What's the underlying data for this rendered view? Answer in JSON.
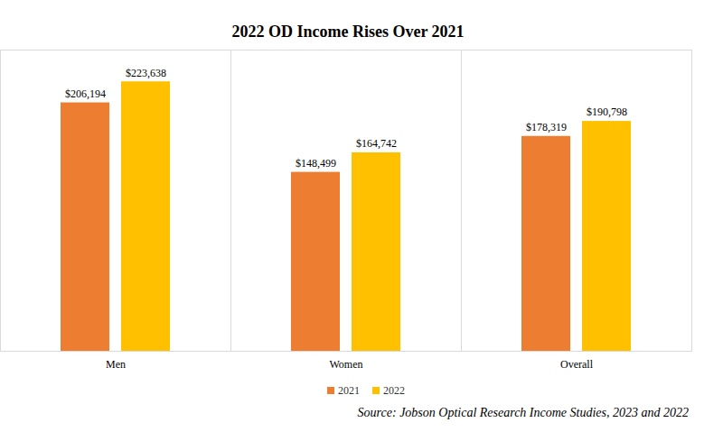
{
  "chart_data": {
    "type": "bar",
    "title": "2022 OD Income Rises Over 2021",
    "categories": [
      "Men",
      "Women",
      "Overall"
    ],
    "series": [
      {
        "name": "2021",
        "color": "#ed7d31",
        "values": [
          206194,
          148499,
          178319
        ],
        "value_labels": [
          "$206,194",
          "$148,499",
          "$178,319"
        ]
      },
      {
        "name": "2022",
        "color": "#ffc000",
        "values": [
          223638,
          164742,
          190798
        ],
        "value_labels": [
          "$223,638",
          "$164,742",
          "$190,798"
        ]
      }
    ],
    "ylim": [
      0,
      250000
    ],
    "data_labels": true,
    "tick_labels": "x",
    "legend": "bottom",
    "source": "Source: Jobson Optical Research Income Studies, 2023 and 2022"
  }
}
